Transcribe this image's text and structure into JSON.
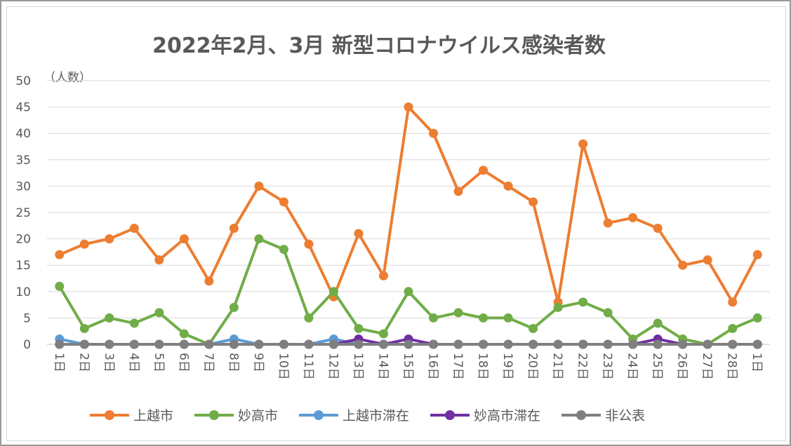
{
  "chart_data": {
    "type": "line",
    "title": "2022年2月、3月 新型コロナウイルス感染者数",
    "ylabel": "（人数）",
    "xlabel": "",
    "ylim": [
      0,
      50
    ],
    "yticks": [
      0,
      5,
      10,
      15,
      20,
      25,
      30,
      35,
      40,
      45,
      50
    ],
    "grid": true,
    "legend_position": "bottom",
    "categories": [
      "1日",
      "2日",
      "3日",
      "4日",
      "5日",
      "6日",
      "7日",
      "8日",
      "9日",
      "10日",
      "11日",
      "12日",
      "13日",
      "14日",
      "15日",
      "16日",
      "17日",
      "18日",
      "19日",
      "20日",
      "21日",
      "22日",
      "23日",
      "24日",
      "25日",
      "26日",
      "27日",
      "28日",
      "1日"
    ],
    "series": [
      {
        "name": "上越市",
        "color": "#ED7D31",
        "values": [
          17,
          19,
          20,
          22,
          16,
          20,
          12,
          22,
          30,
          27,
          19,
          9,
          21,
          13,
          45,
          40,
          29,
          33,
          30,
          27,
          8,
          38,
          23,
          24,
          22,
          15,
          16,
          8,
          17
        ]
      },
      {
        "name": "妙高市",
        "color": "#70AD47",
        "values": [
          11,
          3,
          5,
          4,
          6,
          2,
          0,
          7,
          20,
          18,
          5,
          10,
          3,
          2,
          10,
          5,
          6,
          5,
          5,
          3,
          7,
          8,
          6,
          1,
          4,
          1,
          0,
          3,
          5
        ]
      },
      {
        "name": "上越市滞在",
        "color": "#5B9BD5",
        "values": [
          1,
          0,
          0,
          0,
          0,
          0,
          0,
          1,
          0,
          0,
          0,
          1,
          0,
          0,
          0,
          0,
          0,
          0,
          0,
          0,
          0,
          0,
          0,
          0,
          0,
          0,
          0,
          0,
          0
        ]
      },
      {
        "name": "妙高市滞在",
        "color": "#7030A0",
        "values": [
          0,
          0,
          0,
          0,
          0,
          0,
          0,
          0,
          0,
          0,
          0,
          0,
          1,
          0,
          1,
          0,
          0,
          0,
          0,
          0,
          0,
          0,
          0,
          0,
          1,
          0,
          0,
          0,
          0
        ]
      },
      {
        "name": "非公表",
        "color": "#7F7F7F",
        "values": [
          0,
          0,
          0,
          0,
          0,
          0,
          0,
          0,
          0,
          0,
          0,
          0,
          0,
          0,
          0,
          0,
          0,
          0,
          0,
          0,
          0,
          0,
          0,
          0,
          0,
          0,
          0,
          0,
          0
        ]
      }
    ]
  }
}
